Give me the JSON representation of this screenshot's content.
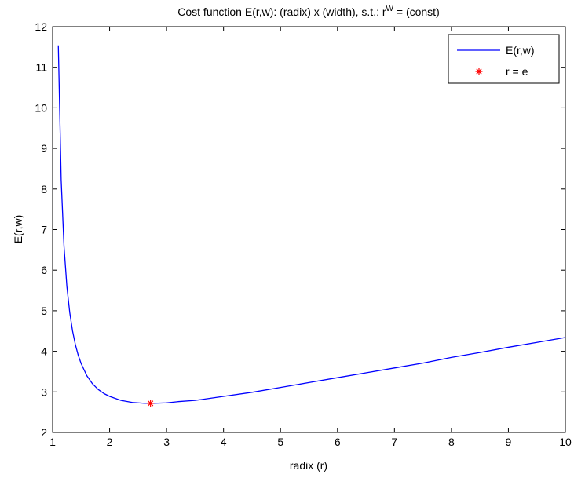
{
  "chart_data": {
    "type": "line",
    "title_prefix": "Cost function E(r,w): (radix) x (width), s.t.: r",
    "title_superscript": "W",
    "title_suffix": " = (const)",
    "xlabel": "radix (r)",
    "ylabel": "E(r,w)",
    "xlim": [
      1,
      10
    ],
    "ylim": [
      2,
      12
    ],
    "xticks": [
      1,
      2,
      3,
      4,
      5,
      6,
      7,
      8,
      9,
      10
    ],
    "yticks": [
      2,
      3,
      4,
      5,
      6,
      7,
      8,
      9,
      10,
      11,
      12
    ],
    "grid": false,
    "legend_position": "top-right",
    "series": [
      {
        "name": "E(r,w)",
        "color": "#0000ff",
        "marker": "none",
        "x": [
          1.1,
          1.15,
          1.2,
          1.25,
          1.3,
          1.35,
          1.4,
          1.45,
          1.5,
          1.6,
          1.7,
          1.8,
          1.9,
          2.0,
          2.2,
          2.4,
          2.6,
          2.718,
          2.8,
          3.0,
          3.2,
          3.5,
          4.0,
          4.5,
          5.0,
          5.5,
          6.0,
          6.5,
          7.0,
          7.5,
          8.0,
          8.5,
          9.0,
          9.5,
          10.0
        ],
        "y": [
          11.54,
          8.23,
          6.58,
          5.6,
          4.96,
          4.5,
          4.16,
          3.9,
          3.7,
          3.4,
          3.2,
          3.06,
          2.96,
          2.89,
          2.79,
          2.74,
          2.72,
          2.718,
          2.72,
          2.73,
          2.76,
          2.79,
          2.89,
          2.99,
          3.11,
          3.23,
          3.35,
          3.47,
          3.59,
          3.71,
          3.85,
          3.97,
          4.1,
          4.22,
          4.34
        ]
      },
      {
        "name": "r = e",
        "color": "#ff0000",
        "marker": "asterisk",
        "x": [
          2.718
        ],
        "y": [
          2.718
        ]
      }
    ]
  }
}
